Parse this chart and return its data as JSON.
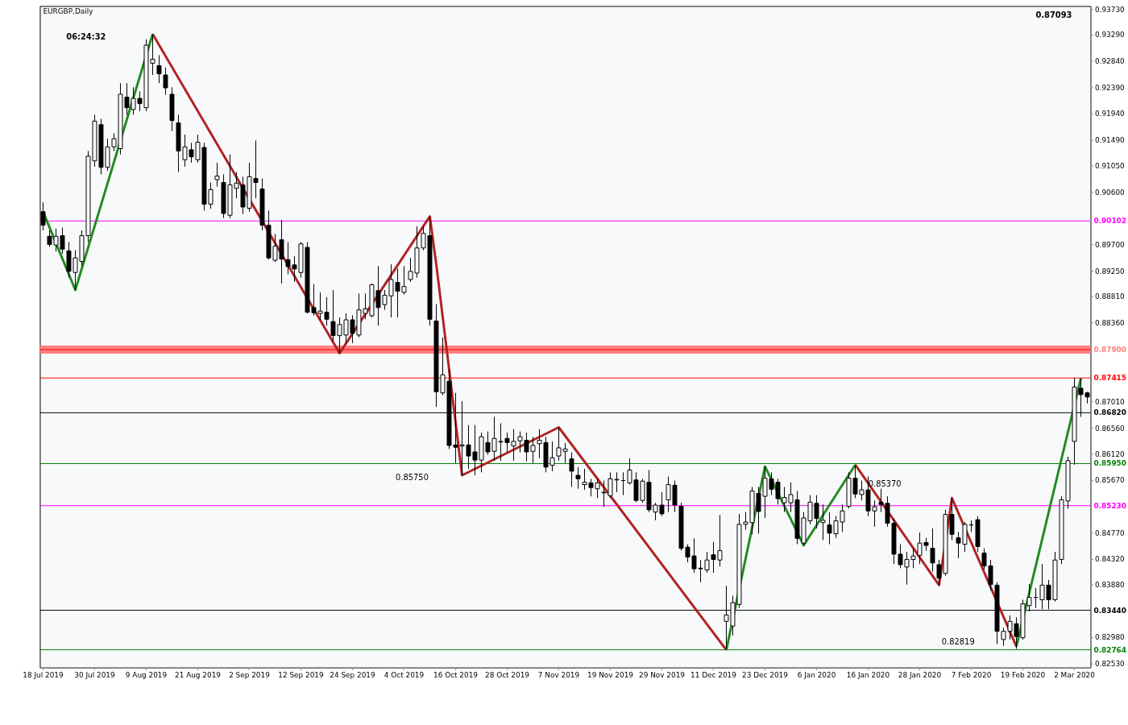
{
  "chart_data": {
    "type": "candlestick",
    "title": "EURGBP,Daily",
    "color": "#000000",
    "categories": [
      "18 Jul 2019",
      null,
      null,
      null,
      null,
      null,
      null,
      null,
      "30 Jul 2019",
      null,
      null,
      null,
      null,
      null,
      null,
      null,
      "9 Aug 2019",
      null,
      null,
      null,
      null,
      null,
      null,
      null,
      "21 Aug 2019",
      null,
      null,
      null,
      null,
      null,
      null,
      null,
      "2 Sep 2019",
      null,
      null,
      null,
      null,
      null,
      null,
      null,
      "12 Sep 2019",
      null,
      null,
      null,
      null,
      null,
      null,
      null,
      "24 Sep 2019",
      null,
      null,
      null,
      null,
      null,
      null,
      null,
      "4 Oct 2019",
      null,
      null,
      null,
      null,
      null,
      null,
      null,
      "16 Oct 2019",
      null,
      null,
      null,
      null,
      null,
      null,
      null,
      "28 Oct 2019",
      null,
      null,
      null,
      null,
      null,
      null,
      null,
      "7 Nov 2019",
      null,
      null,
      null,
      null,
      null,
      null,
      null,
      "19 Nov 2019",
      null,
      null,
      null,
      null,
      null,
      null,
      null,
      "29 Nov 2019",
      null,
      null,
      null,
      null,
      null,
      null,
      null,
      "11 Dec 2019",
      null,
      null,
      null,
      null,
      null,
      null,
      null,
      "23 Dec 2019",
      null,
      null,
      null,
      null,
      null,
      null,
      null,
      "6 Jan 2020",
      null,
      null,
      null,
      null,
      null,
      null,
      null,
      "16 Jan 2020",
      null,
      null,
      null,
      null,
      null,
      null,
      null,
      "28 Jan 2020",
      null,
      null,
      null,
      null,
      null,
      null,
      null,
      "7 Feb 2020",
      null,
      null,
      null,
      null,
      null,
      null,
      null,
      "19 Feb 2020",
      null,
      null,
      null,
      null,
      null,
      null,
      null,
      "2 Mar 2020",
      null,
      null
    ],
    "ohlc": [
      [
        0.9026,
        0.9042,
        0.8994,
        0.9003
      ],
      [
        0.8984,
        0.8994,
        0.8966,
        0.897
      ],
      [
        0.8969,
        0.8997,
        0.8958,
        0.8984
      ],
      [
        0.8985,
        0.8999,
        0.8954,
        0.8962
      ],
      [
        0.8959,
        0.8974,
        0.8913,
        0.8924
      ],
      [
        0.8922,
        0.896,
        0.8892,
        0.8947
      ],
      [
        0.8941,
        0.8994,
        0.8933,
        0.8985
      ],
      [
        0.8985,
        0.913,
        0.8974,
        0.9121
      ],
      [
        0.9113,
        0.9192,
        0.9103,
        0.9181
      ],
      [
        0.9175,
        0.9185,
        0.909,
        0.9102
      ],
      [
        0.9102,
        0.9151,
        0.9096,
        0.9137
      ],
      [
        0.9137,
        0.916,
        0.913,
        0.9151
      ],
      [
        0.9134,
        0.9246,
        0.9124,
        0.9227
      ],
      [
        0.9222,
        0.9246,
        0.9192,
        0.9204
      ],
      [
        0.9201,
        0.9239,
        0.9192,
        0.922
      ],
      [
        0.922,
        0.9232,
        0.9198,
        0.9211
      ],
      [
        0.9204,
        0.9321,
        0.9198,
        0.9311
      ],
      [
        0.928,
        0.933,
        0.926,
        0.9287
      ],
      [
        0.9276,
        0.9294,
        0.9246,
        0.9262
      ],
      [
        0.926,
        0.9273,
        0.9226,
        0.9238
      ],
      [
        0.9227,
        0.9239,
        0.9164,
        0.9182
      ],
      [
        0.9178,
        0.9192,
        0.9094,
        0.913
      ],
      [
        0.9115,
        0.9158,
        0.9103,
        0.9137
      ],
      [
        0.9132,
        0.9144,
        0.911,
        0.912
      ],
      [
        0.9115,
        0.9158,
        0.911,
        0.9145
      ],
      [
        0.9136,
        0.9144,
        0.9028,
        0.9039
      ],
      [
        0.9039,
        0.9076,
        0.9031,
        0.9064
      ],
      [
        0.9081,
        0.911,
        0.9069,
        0.9087
      ],
      [
        0.9076,
        0.909,
        0.9015,
        0.9023
      ],
      [
        0.902,
        0.9124,
        0.9015,
        0.9072
      ],
      [
        0.9066,
        0.9094,
        0.9049,
        0.9075
      ],
      [
        0.9072,
        0.9086,
        0.9022,
        0.9034
      ],
      [
        0.9032,
        0.911,
        0.9026,
        0.9086
      ],
      [
        0.9083,
        0.9148,
        0.9049,
        0.9076
      ],
      [
        0.9065,
        0.9083,
        0.8994,
        0.9003
      ],
      [
        0.9003,
        0.9028,
        0.8944,
        0.8947
      ],
      [
        0.8943,
        0.8988,
        0.894,
        0.8967
      ],
      [
        0.8978,
        0.9012,
        0.8903,
        0.8945
      ],
      [
        0.8944,
        0.8974,
        0.8919,
        0.8932
      ],
      [
        0.8935,
        0.895,
        0.8906,
        0.8928
      ],
      [
        0.8922,
        0.8974,
        0.8913,
        0.8971
      ],
      [
        0.8965,
        0.8974,
        0.8852,
        0.8854
      ],
      [
        0.8862,
        0.8902,
        0.8848,
        0.8853
      ],
      [
        0.8852,
        0.8888,
        0.8841,
        0.8856
      ],
      [
        0.8854,
        0.888,
        0.8831,
        0.8842
      ],
      [
        0.8838,
        0.8892,
        0.8804,
        0.8814
      ],
      [
        0.8814,
        0.8845,
        0.8784,
        0.8833
      ],
      [
        0.8815,
        0.8852,
        0.8801,
        0.8841
      ],
      [
        0.8841,
        0.8849,
        0.8801,
        0.8818
      ],
      [
        0.8815,
        0.8886,
        0.8811,
        0.8858
      ],
      [
        0.8852,
        0.8886,
        0.8842,
        0.886
      ],
      [
        0.8848,
        0.8903,
        0.8845,
        0.8901
      ],
      [
        0.8891,
        0.8933,
        0.8831,
        0.8862
      ],
      [
        0.8867,
        0.8892,
        0.8858,
        0.8883
      ],
      [
        0.8882,
        0.8936,
        0.8845,
        0.891
      ],
      [
        0.8905,
        0.8929,
        0.8845,
        0.889
      ],
      [
        0.8888,
        0.8933,
        0.8884,
        0.8898
      ],
      [
        0.891,
        0.8947,
        0.8906,
        0.8924
      ],
      [
        0.8921,
        0.9001,
        0.8913,
        0.8964
      ],
      [
        0.8964,
        0.9001,
        0.896,
        0.8989
      ],
      [
        0.8985,
        0.9018,
        0.8831,
        0.8842
      ],
      [
        0.8839,
        0.8868,
        0.8692,
        0.8718
      ],
      [
        0.8716,
        0.8811,
        0.8712,
        0.8747
      ],
      [
        0.8736,
        0.8756,
        0.862,
        0.8626
      ],
      [
        0.8627,
        0.8716,
        0.8596,
        0.8623
      ],
      [
        0.8625,
        0.8702,
        0.8575,
        0.8627
      ],
      [
        0.8627,
        0.8661,
        0.8586,
        0.8608
      ],
      [
        0.8615,
        0.8661,
        0.8575,
        0.8601
      ],
      [
        0.8601,
        0.8648,
        0.858,
        0.8641
      ],
      [
        0.8631,
        0.865,
        0.861,
        0.8615
      ],
      [
        0.8616,
        0.8675,
        0.86,
        0.8638
      ],
      [
        0.8633,
        0.8664,
        0.86,
        0.8632
      ],
      [
        0.8638,
        0.8648,
        0.8614,
        0.8631
      ],
      [
        0.8625,
        0.8654,
        0.86,
        0.8633
      ],
      [
        0.8634,
        0.865,
        0.8614,
        0.8641
      ],
      [
        0.8635,
        0.8648,
        0.8599,
        0.8615
      ],
      [
        0.8616,
        0.8641,
        0.8596,
        0.8626
      ],
      [
        0.8629,
        0.8654,
        0.8604,
        0.8635
      ],
      [
        0.8631,
        0.8641,
        0.858,
        0.8589
      ],
      [
        0.8592,
        0.8633,
        0.8582,
        0.8605
      ],
      [
        0.8608,
        0.8657,
        0.86,
        0.8622
      ],
      [
        0.8616,
        0.863,
        0.8596,
        0.862
      ],
      [
        0.8603,
        0.8614,
        0.8555,
        0.8582
      ],
      [
        0.8575,
        0.8589,
        0.8552,
        0.8569
      ],
      [
        0.8559,
        0.8586,
        0.855,
        0.8563
      ],
      [
        0.8562,
        0.8569,
        0.8539,
        0.8554
      ],
      [
        0.8552,
        0.8569,
        0.8536,
        0.8562
      ],
      [
        0.8546,
        0.8566,
        0.8521,
        0.8545
      ],
      [
        0.854,
        0.858,
        0.8536,
        0.8569
      ],
      [
        0.8567,
        0.858,
        0.8546,
        0.8568
      ],
      [
        0.8566,
        0.858,
        0.8541,
        0.8566
      ],
      [
        0.8562,
        0.8604,
        0.8559,
        0.8584
      ],
      [
        0.8567,
        0.858,
        0.8529,
        0.8532
      ],
      [
        0.8532,
        0.8569,
        0.8528,
        0.8565
      ],
      [
        0.8563,
        0.8584,
        0.8512,
        0.8516
      ],
      [
        0.8512,
        0.8528,
        0.8498,
        0.8524
      ],
      [
        0.8524,
        0.8546,
        0.8505,
        0.8509
      ],
      [
        0.8533,
        0.8573,
        0.8512,
        0.8559
      ],
      [
        0.8558,
        0.8566,
        0.8512,
        0.8524
      ],
      [
        0.8522,
        0.8528,
        0.8446,
        0.845
      ],
      [
        0.8452,
        0.8457,
        0.8426,
        0.8435
      ],
      [
        0.8437,
        0.8467,
        0.8408,
        0.8415
      ],
      [
        0.8416,
        0.843,
        0.8392,
        0.8415
      ],
      [
        0.8413,
        0.8444,
        0.8408,
        0.843
      ],
      [
        0.8439,
        0.8461,
        0.8408,
        0.8431
      ],
      [
        0.843,
        0.8507,
        0.8419,
        0.8446
      ],
      [
        0.8325,
        0.8386,
        0.8276,
        0.8336
      ],
      [
        0.8317,
        0.8369,
        0.8301,
        0.8357
      ],
      [
        0.8354,
        0.8509,
        0.8348,
        0.8491
      ],
      [
        0.8491,
        0.8512,
        0.8482,
        0.8495
      ],
      [
        0.8494,
        0.8555,
        0.8474,
        0.8548
      ],
      [
        0.8544,
        0.8555,
        0.8475,
        0.8513
      ],
      [
        0.8539,
        0.859,
        0.8502,
        0.857
      ],
      [
        0.8569,
        0.858,
        0.8541,
        0.8551
      ],
      [
        0.8563,
        0.8569,
        0.8525,
        0.8535
      ],
      [
        0.8528,
        0.8555,
        0.8512,
        0.8537
      ],
      [
        0.8528,
        0.8563,
        0.8512,
        0.8542
      ],
      [
        0.8533,
        0.8548,
        0.8457,
        0.8467
      ],
      [
        0.8459,
        0.8512,
        0.8455,
        0.8502
      ],
      [
        0.8497,
        0.8541,
        0.8491,
        0.8529
      ],
      [
        0.8527,
        0.8541,
        0.8484,
        0.8501
      ],
      [
        0.8494,
        0.8525,
        0.8464,
        0.8498
      ],
      [
        0.849,
        0.8512,
        0.8457,
        0.8476
      ],
      [
        0.8475,
        0.8505,
        0.8468,
        0.8497
      ],
      [
        0.8495,
        0.8525,
        0.8478,
        0.8514
      ],
      [
        0.8522,
        0.858,
        0.8518,
        0.857
      ],
      [
        0.857,
        0.8593,
        0.8536,
        0.8543
      ],
      [
        0.8542,
        0.8566,
        0.8532,
        0.855
      ],
      [
        0.855,
        0.8573,
        0.8505,
        0.8514
      ],
      [
        0.8514,
        0.8532,
        0.8487,
        0.8521
      ],
      [
        0.8529,
        0.8552,
        0.8512,
        0.8525
      ],
      [
        0.8527,
        0.8539,
        0.8487,
        0.8493
      ],
      [
        0.8493,
        0.8501,
        0.8423,
        0.844
      ],
      [
        0.844,
        0.8457,
        0.8416,
        0.8422
      ],
      [
        0.8418,
        0.8444,
        0.8388,
        0.8431
      ],
      [
        0.8431,
        0.845,
        0.8416,
        0.8437
      ],
      [
        0.8438,
        0.8477,
        0.8423,
        0.8459
      ],
      [
        0.846,
        0.8468,
        0.8446,
        0.8455
      ],
      [
        0.845,
        0.8484,
        0.841,
        0.8425
      ],
      [
        0.8422,
        0.843,
        0.8387,
        0.8399
      ],
      [
        0.8407,
        0.8516,
        0.8403,
        0.8508
      ],
      [
        0.8508,
        0.8536,
        0.8464,
        0.8474
      ],
      [
        0.8468,
        0.8478,
        0.8433,
        0.8459
      ],
      [
        0.8457,
        0.8495,
        0.8444,
        0.8491
      ],
      [
        0.849,
        0.8498,
        0.8478,
        0.849
      ],
      [
        0.8499,
        0.8505,
        0.8444,
        0.8453
      ],
      [
        0.8442,
        0.845,
        0.8414,
        0.842
      ],
      [
        0.842,
        0.843,
        0.8378,
        0.8388
      ],
      [
        0.8387,
        0.8392,
        0.8286,
        0.8308
      ],
      [
        0.8294,
        0.8314,
        0.8283,
        0.8308
      ],
      [
        0.8308,
        0.8335,
        0.8294,
        0.8325
      ],
      [
        0.8321,
        0.8332,
        0.8278,
        0.8299
      ],
      [
        0.8297,
        0.8362,
        0.8294,
        0.8355
      ],
      [
        0.8352,
        0.8389,
        0.8342,
        0.8366
      ],
      [
        0.8366,
        0.8382,
        0.8348,
        0.8366
      ],
      [
        0.8362,
        0.8423,
        0.8346,
        0.8387
      ],
      [
        0.8387,
        0.8396,
        0.8346,
        0.8362
      ],
      [
        0.8362,
        0.8444,
        0.8359,
        0.843
      ],
      [
        0.8431,
        0.8539,
        0.8423,
        0.8533
      ],
      [
        0.8531,
        0.8607,
        0.8518,
        0.86
      ],
      [
        0.8633,
        0.8742,
        0.8593,
        0.8726
      ],
      [
        0.8724,
        0.8741,
        0.8675,
        0.8713
      ],
      [
        0.8716,
        0.8718,
        0.8698,
        0.8709
      ]
    ],
    "ylim": [
      0.8246,
      0.9378
    ],
    "yticks": [
      {
        "value": 0.9373,
        "label": "0.93730"
      },
      {
        "value": 0.9329,
        "label": "0.93290"
      },
      {
        "value": 0.9284,
        "label": "0.92840"
      },
      {
        "value": 0.9239,
        "label": "0.92390"
      },
      {
        "value": 0.9194,
        "label": "0.91940"
      },
      {
        "value": 0.9149,
        "label": "0.91490"
      },
      {
        "value": 0.9105,
        "label": "0.91050"
      },
      {
        "value": 0.906,
        "label": "0.90600"
      },
      {
        "value": 0.897,
        "label": "0.89700"
      },
      {
        "value": 0.8925,
        "label": "0.89250"
      },
      {
        "value": 0.8881,
        "label": "0.88810"
      },
      {
        "value": 0.8836,
        "label": "0.88360"
      },
      {
        "value": 0.8701,
        "label": "0.87010"
      },
      {
        "value": 0.8656,
        "label": "0.86560"
      },
      {
        "value": 0.8612,
        "label": "0.86120"
      },
      {
        "value": 0.8567,
        "label": "0.85670"
      },
      {
        "value": 0.8477,
        "label": "0.84770"
      },
      {
        "value": 0.8432,
        "label": "0.84320"
      },
      {
        "value": 0.8388,
        "label": "0.83880"
      },
      {
        "value": 0.8298,
        "label": "0.82980"
      },
      {
        "value": 0.8253,
        "label": "0.82530"
      }
    ],
    "series": [
      {
        "type": "line",
        "color": "#b22222",
        "values": [
          null,
          null,
          null,
          null,
          null,
          null,
          null,
          null,
          null,
          null,
          null,
          null,
          null,
          null,
          null,
          null,
          null,
          0.933,
          null,
          null,
          null,
          null,
          null,
          null,
          null,
          null,
          null,
          null,
          null,
          null,
          null,
          null,
          null,
          null,
          null,
          null,
          null,
          null,
          null,
          null,
          null,
          null,
          null,
          null,
          null,
          null,
          0.8784,
          null,
          null,
          null,
          null,
          null,
          null,
          null,
          null,
          null,
          null,
          null,
          null,
          null,
          0.9018,
          0.8936,
          null,
          null,
          null,
          0.8575,
          null,
          null,
          null,
          null,
          null,
          null,
          null,
          null,
          null,
          null,
          null,
          null,
          null,
          null,
          0.8657,
          null,
          null,
          null,
          null,
          null,
          null,
          null,
          null,
          null,
          null,
          null,
          null,
          null,
          null,
          null,
          null,
          null,
          null,
          null,
          null,
          null,
          null,
          null,
          null,
          null,
          0.8276,
          null,
          null,
          null,
          null,
          null,
          null,
          null,
          null,
          null,
          null,
          null,
          null,
          null,
          null,
          null,
          null,
          null,
          null,
          null,
          null,
          null,
          null,
          null,
          null,
          null,
          null,
          null,
          null,
          null,
          null,
          null,
          null,
          null,
          null,
          null,
          null,
          null,
          null,
          null,
          null,
          null,
          null,
          null,
          null,
          null,
          null,
          null,
          null,
          null,
          null,
          null,
          null,
          null,
          null,
          null,
          null
        ]
      },
      {
        "type": "line",
        "color": "#b22222",
        "values": [
          null,
          null,
          null,
          null,
          null,
          null,
          null,
          null,
          null,
          null,
          null,
          null,
          null,
          null,
          null,
          null,
          null,
          null,
          null,
          null,
          null,
          null,
          null,
          null,
          null,
          null,
          null,
          null,
          null,
          null,
          null,
          null,
          null,
          null,
          null,
          null,
          null,
          null,
          null,
          null,
          null,
          null,
          null,
          null,
          null,
          null,
          null,
          null,
          null,
          null,
          null,
          null,
          null,
          null,
          null,
          null,
          null,
          null,
          null,
          null,
          null,
          null,
          null,
          null,
          null,
          null,
          null,
          null,
          null,
          null,
          null,
          null,
          null,
          null,
          null,
          null,
          null,
          null,
          null,
          null,
          null,
          null,
          null,
          null,
          null,
          null,
          null,
          null,
          null,
          null,
          null,
          null,
          null,
          null,
          null,
          null,
          null,
          null,
          null,
          null,
          null,
          null,
          null,
          null,
          null,
          null,
          null,
          null,
          null,
          null,
          null,
          null,
          null,
          null,
          null,
          null,
          null,
          null,
          null,
          null,
          null,
          null,
          null,
          null,
          null,
          null,
          0.8593,
          null,
          null,
          null,
          null,
          null,
          null,
          null,
          null,
          null,
          null,
          null,
          null,
          0.8387,
          null,
          0.8536,
          null,
          null,
          null,
          null,
          null,
          null,
          null,
          null,
          null,
          0.8282,
          null,
          null,
          null,
          null,
          null,
          null,
          null,
          null,
          null,
          null,
          null
        ]
      },
      {
        "type": "line",
        "color": "#228b22",
        "values": [
          0.9026,
          null,
          null,
          null,
          null,
          0.8892,
          null,
          null,
          null,
          null,
          null,
          null,
          null,
          null,
          null,
          null,
          null,
          0.933,
          null,
          null,
          null,
          null,
          null,
          null,
          null,
          null,
          null,
          null,
          null,
          null,
          null,
          null,
          null,
          null,
          null,
          null,
          null,
          null,
          null,
          null,
          null,
          null,
          null,
          null,
          null,
          null,
          null,
          null,
          null,
          null,
          null,
          null,
          null,
          null,
          null,
          null,
          null,
          null,
          null,
          null,
          null,
          null,
          null,
          null,
          null,
          null,
          null,
          null,
          null,
          null,
          null,
          null,
          null,
          null,
          null,
          null,
          null,
          null,
          null,
          null,
          null,
          null,
          null,
          null,
          null,
          null,
          null,
          null,
          null,
          null,
          null,
          null,
          null,
          null,
          null,
          null,
          null,
          null,
          null,
          null,
          null,
          null,
          null,
          null,
          null,
          null,
          null,
          null,
          null,
          null,
          null,
          null,
          null,
          null,
          null,
          null,
          null,
          null,
          null,
          null,
          null,
          null,
          null,
          null,
          null,
          null,
          null,
          null,
          null,
          null,
          null,
          null,
          null,
          null,
          null,
          null,
          null,
          null,
          null,
          null,
          null,
          null,
          null,
          null,
          null,
          null,
          null,
          null,
          null,
          null,
          null,
          null,
          null,
          null,
          null,
          null,
          null,
          null,
          null,
          null,
          null,
          null,
          null
        ]
      },
      {
        "type": "line",
        "color": "#228b22",
        "values": [
          null,
          null,
          null,
          null,
          null,
          null,
          null,
          null,
          null,
          null,
          null,
          null,
          null,
          null,
          null,
          null,
          null,
          null,
          null,
          null,
          null,
          null,
          null,
          null,
          null,
          null,
          null,
          null,
          null,
          null,
          null,
          null,
          null,
          null,
          null,
          null,
          null,
          null,
          null,
          null,
          null,
          null,
          null,
          null,
          null,
          null,
          null,
          null,
          null,
          null,
          null,
          null,
          null,
          null,
          null,
          null,
          null,
          null,
          null,
          null,
          null,
          null,
          null,
          null,
          null,
          null,
          null,
          null,
          null,
          null,
          null,
          null,
          null,
          null,
          null,
          null,
          null,
          null,
          null,
          null,
          null,
          null,
          null,
          null,
          null,
          null,
          null,
          null,
          null,
          null,
          null,
          null,
          null,
          null,
          null,
          null,
          null,
          null,
          null,
          null,
          null,
          null,
          null,
          null,
          null,
          null,
          0.8276,
          null,
          null,
          null,
          null,
          null,
          0.859,
          null,
          null,
          null,
          null,
          null,
          0.8455,
          null,
          null,
          null,
          null,
          null,
          null,
          null,
          0.8593,
          null,
          null,
          null,
          null,
          null,
          null,
          null,
          null,
          null,
          null,
          null,
          null,
          null,
          null,
          null,
          null,
          null,
          null,
          null,
          null,
          null,
          null,
          null,
          null,
          null,
          null,
          null,
          null,
          null,
          null,
          null,
          null,
          null,
          null,
          null,
          null
        ]
      },
      {
        "type": "line",
        "color": "#228b22",
        "values": [
          null,
          null,
          null,
          null,
          null,
          null,
          null,
          null,
          null,
          null,
          null,
          null,
          null,
          null,
          null,
          null,
          null,
          null,
          null,
          null,
          null,
          null,
          null,
          null,
          null,
          null,
          null,
          null,
          null,
          null,
          null,
          null,
          null,
          null,
          null,
          null,
          null,
          null,
          null,
          null,
          null,
          null,
          null,
          null,
          null,
          null,
          null,
          null,
          null,
          null,
          null,
          null,
          null,
          null,
          null,
          null,
          null,
          null,
          null,
          null,
          null,
          null,
          null,
          null,
          null,
          null,
          null,
          null,
          null,
          null,
          null,
          null,
          null,
          null,
          null,
          null,
          null,
          null,
          null,
          null,
          null,
          null,
          null,
          null,
          null,
          null,
          null,
          null,
          null,
          null,
          null,
          null,
          null,
          null,
          null,
          null,
          null,
          null,
          null,
          null,
          null,
          null,
          null,
          null,
          null,
          null,
          null,
          null,
          null,
          null,
          null,
          null,
          null,
          null,
          null,
          null,
          null,
          null,
          null,
          null,
          null,
          null,
          null,
          null,
          null,
          null,
          null,
          null,
          null,
          null,
          null,
          null,
          null,
          null,
          null,
          null,
          null,
          null,
          null,
          null,
          null,
          null,
          null,
          null,
          null,
          null,
          null,
          null,
          null,
          null,
          null,
          0.8282,
          null,
          null,
          null,
          null,
          null,
          null,
          null,
          null,
          null,
          0.8741,
          null
        ]
      }
    ],
    "bands": [
      {
        "axis": "y",
        "from": 0.8783,
        "to": 0.8797,
        "label": "0.87900",
        "color": "#ff7f7f"
      }
    ],
    "ref_lines": [
      {
        "axis": "y",
        "value": 0.879,
        "label": null,
        "color": "#ff0000"
      },
      {
        "axis": "y",
        "value": 0.90102,
        "label": "0.90102",
        "color": "#ff00ff"
      },
      {
        "axis": "y",
        "value": 0.87415,
        "label": "0.87415",
        "color": "#ff0000"
      },
      {
        "axis": "y",
        "value": 0.8682,
        "label": "0.86820",
        "color": "#000000"
      },
      {
        "axis": "y",
        "value": 0.8595,
        "label": "0.85950",
        "color": "#008000"
      },
      {
        "axis": "y",
        "value": 0.8523,
        "label": "0.85230",
        "color": "#ff00ff"
      },
      {
        "axis": "y",
        "value": 0.8344,
        "label": "0.83440",
        "color": "#000000"
      },
      {
        "axis": "y",
        "value": 0.82764,
        "label": "0.82764",
        "color": "#008000"
      }
    ],
    "annotations": [
      "06:24:32",
      "0.87093",
      "0.85750",
      "0.85370",
      "0.82819"
    ]
  }
}
